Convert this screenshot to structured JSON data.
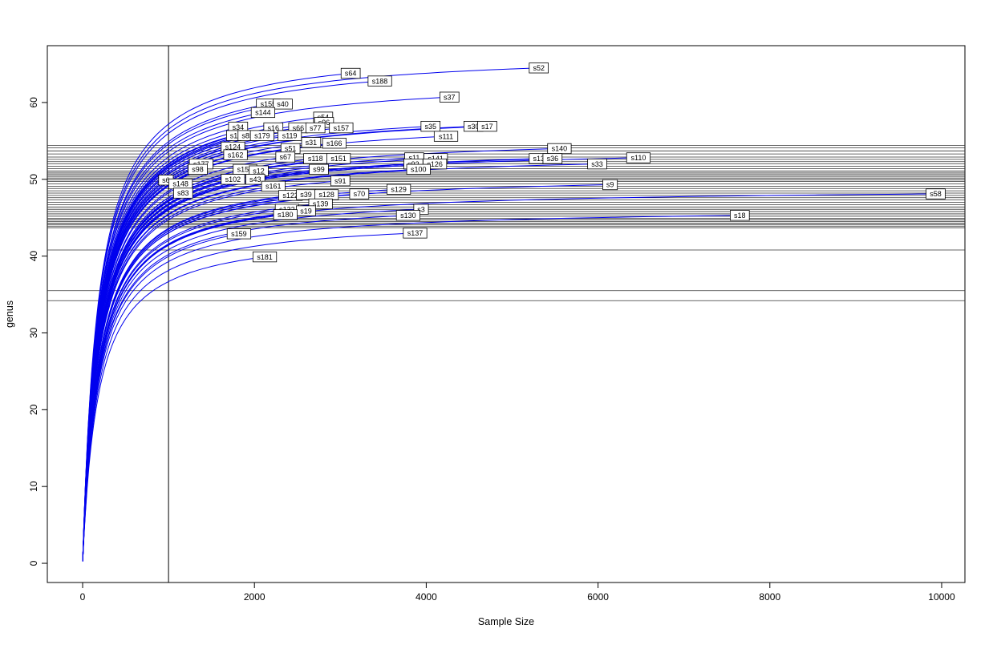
{
  "chart_data": {
    "type": "line",
    "title": "",
    "subtitle": "",
    "xlabel": "Sample Size",
    "ylabel": "genus",
    "x_ticks": [
      0,
      2000,
      4000,
      6000,
      8000,
      10000
    ],
    "y_ticks": [
      0,
      10,
      20,
      30,
      40,
      50,
      60
    ],
    "xlim": [
      -411,
      10271
    ],
    "ylim": [
      -2.5,
      67.4
    ],
    "grid": false,
    "legend": "none",
    "curve_color": "#0000ee",
    "reference_line_color": "#333333",
    "vline_x": 1000,
    "hlines_y": [
      54.4,
      54.1,
      53.7,
      53.3,
      52.9,
      52.6,
      52.3,
      52.0,
      51.7,
      51.4,
      51.1,
      50.9,
      50.7,
      50.5,
      50.3,
      50.1,
      49.9,
      49.7,
      49.4,
      49.1,
      48.8,
      48.5,
      48.2,
      47.9,
      47.6,
      47.3,
      47.0,
      46.7,
      46.4,
      46.1,
      45.8,
      45.5,
      45.2,
      44.9,
      44.7,
      44.5,
      44.3,
      44.1,
      43.9,
      43.7,
      40.8,
      35.5,
      34.2
    ],
    "series": [
      {
        "name": "s52",
        "end_x": 5310,
        "end_y": 64.5
      },
      {
        "name": "s64",
        "end_x": 3120,
        "end_y": 63.8
      },
      {
        "name": "s188",
        "end_x": 3460,
        "end_y": 62.8
      },
      {
        "name": "s37",
        "end_x": 4270,
        "end_y": 60.7
      },
      {
        "name": "s155",
        "end_x": 2160,
        "end_y": 59.8
      },
      {
        "name": "s40",
        "end_x": 2330,
        "end_y": 59.8
      },
      {
        "name": "s144",
        "end_x": 2100,
        "end_y": 58.7
      },
      {
        "name": "s54",
        "end_x": 2800,
        "end_y": 58.1
      },
      {
        "name": "s96",
        "end_x": 2810,
        "end_y": 57.4
      },
      {
        "name": "s34",
        "end_x": 1810,
        "end_y": 56.8
      },
      {
        "name": "s16",
        "end_x": 2220,
        "end_y": 56.7
      },
      {
        "name": "s66",
        "end_x": 2510,
        "end_y": 56.7
      },
      {
        "name": "s77",
        "end_x": 2710,
        "end_y": 56.7
      },
      {
        "name": "s157",
        "end_x": 3010,
        "end_y": 56.7
      },
      {
        "name": "s35",
        "end_x": 4050,
        "end_y": 56.9
      },
      {
        "name": "s30",
        "end_x": 4550,
        "end_y": 56.9
      },
      {
        "name": "s17",
        "end_x": 4710,
        "end_y": 56.9
      },
      {
        "name": "s1",
        "end_x": 1760,
        "end_y": 55.7
      },
      {
        "name": "s85",
        "end_x": 1920,
        "end_y": 55.7
      },
      {
        "name": "s179",
        "end_x": 2090,
        "end_y": 55.7
      },
      {
        "name": "s119",
        "end_x": 2410,
        "end_y": 55.7
      },
      {
        "name": "s111",
        "end_x": 4230,
        "end_y": 55.6
      },
      {
        "name": "s31",
        "end_x": 2660,
        "end_y": 54.8
      },
      {
        "name": "s166",
        "end_x": 2930,
        "end_y": 54.7
      },
      {
        "name": "s124",
        "end_x": 1750,
        "end_y": 54.2
      },
      {
        "name": "s51",
        "end_x": 2420,
        "end_y": 54.0
      },
      {
        "name": "s140",
        "end_x": 5550,
        "end_y": 54.0
      },
      {
        "name": "s162",
        "end_x": 1780,
        "end_y": 53.2
      },
      {
        "name": "s67",
        "end_x": 2360,
        "end_y": 52.9
      },
      {
        "name": "s118",
        "end_x": 2710,
        "end_y": 52.7
      },
      {
        "name": "s151",
        "end_x": 2980,
        "end_y": 52.7
      },
      {
        "name": "s11",
        "end_x": 3860,
        "end_y": 52.8
      },
      {
        "name": "s141",
        "end_x": 4110,
        "end_y": 52.7
      },
      {
        "name": "s13",
        "end_x": 5310,
        "end_y": 52.7
      },
      {
        "name": "s36",
        "end_x": 5470,
        "end_y": 52.7
      },
      {
        "name": "s110",
        "end_x": 6470,
        "end_y": 52.8
      },
      {
        "name": "s177",
        "end_x": 1380,
        "end_y": 52.0
      },
      {
        "name": "s92",
        "end_x": 3850,
        "end_y": 52.0
      },
      {
        "name": "s126",
        "end_x": 4100,
        "end_y": 52.0
      },
      {
        "name": "s33",
        "end_x": 5990,
        "end_y": 52.0
      },
      {
        "name": "s98",
        "end_x": 1340,
        "end_y": 51.3
      },
      {
        "name": "s156",
        "end_x": 1890,
        "end_y": 51.3
      },
      {
        "name": "s12",
        "end_x": 2050,
        "end_y": 51.1
      },
      {
        "name": "s99",
        "end_x": 2750,
        "end_y": 51.3
      },
      {
        "name": "s100",
        "end_x": 3910,
        "end_y": 51.3
      },
      {
        "name": "s6",
        "end_x": 970,
        "end_y": 49.9
      },
      {
        "name": "s148",
        "end_x": 1140,
        "end_y": 49.4
      },
      {
        "name": "s102",
        "end_x": 1750,
        "end_y": 50.0
      },
      {
        "name": "s43",
        "end_x": 2010,
        "end_y": 50.0
      },
      {
        "name": "s91",
        "end_x": 3000,
        "end_y": 49.8
      },
      {
        "name": "s9",
        "end_x": 6140,
        "end_y": 49.3
      },
      {
        "name": "s83",
        "end_x": 1170,
        "end_y": 48.2
      },
      {
        "name": "s161",
        "end_x": 2220,
        "end_y": 49.1
      },
      {
        "name": "s129",
        "end_x": 3680,
        "end_y": 48.7
      },
      {
        "name": "s122",
        "end_x": 2420,
        "end_y": 47.9
      },
      {
        "name": "s39",
        "end_x": 2600,
        "end_y": 48.0
      },
      {
        "name": "s128",
        "end_x": 2840,
        "end_y": 48.0
      },
      {
        "name": "s70",
        "end_x": 3220,
        "end_y": 48.1
      },
      {
        "name": "s58",
        "end_x": 9930,
        "end_y": 48.1
      },
      {
        "name": "s132",
        "end_x": 2380,
        "end_y": 46.1
      },
      {
        "name": "s139",
        "end_x": 2770,
        "end_y": 46.8
      },
      {
        "name": "s19",
        "end_x": 2600,
        "end_y": 45.9
      },
      {
        "name": "s3",
        "end_x": 3940,
        "end_y": 46.1
      },
      {
        "name": "s180",
        "end_x": 2360,
        "end_y": 45.4
      },
      {
        "name": "s130",
        "end_x": 3790,
        "end_y": 45.3
      },
      {
        "name": "s18",
        "end_x": 7650,
        "end_y": 45.3
      },
      {
        "name": "s159",
        "end_x": 1820,
        "end_y": 42.9
      },
      {
        "name": "s137",
        "end_x": 3870,
        "end_y": 43.0
      },
      {
        "name": "s181",
        "end_x": 2120,
        "end_y": 39.9
      }
    ]
  }
}
